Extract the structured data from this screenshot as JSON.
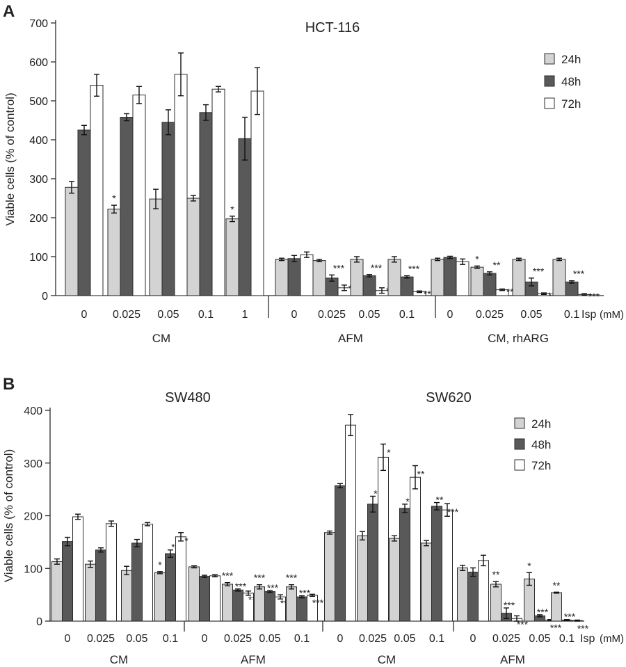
{
  "units": "(mM)",
  "isp_label": "Isp",
  "colors": {
    "24h": "#d3d3d3",
    "48h": "#595959",
    "72h": "#ffffff",
    "stroke": "#2b2b2b"
  },
  "chart_data": [
    {
      "panel": "A",
      "type": "bar",
      "title": "HCT-116",
      "ylabel": "Viable cells (% of control)",
      "ylim": [
        0,
        700
      ],
      "yticks": [
        0,
        100,
        200,
        300,
        400,
        500,
        600,
        700
      ],
      "legend": {
        "position": "top-right",
        "entries": [
          "24h",
          "48h",
          "72h"
        ]
      },
      "groups": [
        {
          "label": "CM",
          "categories": [
            {
              "label": "0",
              "values": [
                278,
                425,
                540
              ],
              "errors": [
                15,
                12,
                28
              ],
              "stars": [
                "",
                "",
                ""
              ]
            },
            {
              "label": "0.025",
              "values": [
                222,
                458,
                515
              ],
              "errors": [
                10,
                9,
                22
              ],
              "stars": [
                "*",
                "",
                ""
              ]
            },
            {
              "label": "0.05",
              "values": [
                248,
                445,
                568
              ],
              "errors": [
                25,
                32,
                55
              ],
              "stars": [
                "",
                "",
                ""
              ]
            },
            {
              "label": "0.1",
              "values": [
                250,
                470,
                530
              ],
              "errors": [
                7,
                20,
                7
              ],
              "stars": [
                "",
                "",
                ""
              ]
            },
            {
              "label": "1",
              "values": [
                197,
                403,
                525
              ],
              "errors": [
                7,
                55,
                60
              ],
              "stars": [
                "*",
                "",
                ""
              ]
            }
          ]
        },
        {
          "label": "AFM",
          "categories": [
            {
              "label": "0",
              "values": [
                93,
                95,
                105
              ],
              "errors": [
                3,
                8,
                7
              ],
              "stars": [
                "",
                "",
                ""
              ]
            },
            {
              "label": "0.025",
              "values": [
                90,
                45,
                20
              ],
              "errors": [
                3,
                8,
                7
              ],
              "stars": [
                "",
                "***",
                "***"
              ]
            },
            {
              "label": "0.05",
              "values": [
                93,
                51,
                13
              ],
              "errors": [
                7,
                3,
                7
              ],
              "stars": [
                "",
                "***",
                "***"
              ]
            },
            {
              "label": "0.1",
              "values": [
                93,
                48,
                10
              ],
              "errors": [
                7,
                3,
                2
              ],
              "stars": [
                "",
                "***",
                "***"
              ]
            }
          ]
        },
        {
          "label": "CM, rhARG",
          "categories": [
            {
              "label": "0",
              "values": [
                93,
                98,
                87
              ],
              "errors": [
                3,
                3,
                7
              ],
              "stars": [
                "",
                "",
                ""
              ]
            },
            {
              "label": "0.025",
              "values": [
                73,
                57,
                15
              ],
              "errors": [
                3,
                4,
                2
              ],
              "stars": [
                "*",
                "**",
                "***"
              ]
            },
            {
              "label": "0.05",
              "values": [
                93,
                35,
                5
              ],
              "errors": [
                3,
                10,
                2
              ],
              "stars": [
                "",
                "***",
                "***"
              ]
            },
            {
              "label": "0.1",
              "values": [
                93,
                35,
                3
              ],
              "errors": [
                3,
                3,
                2
              ],
              "stars": [
                "",
                "***",
                "***"
              ]
            }
          ]
        }
      ]
    },
    {
      "panel": "B",
      "type": "bar",
      "titles": [
        "SW480",
        "SW620"
      ],
      "ylabel": "Viable cells (% of control)",
      "ylim": [
        0,
        400
      ],
      "yticks": [
        0,
        100,
        200,
        300,
        400
      ],
      "legend": {
        "position": "top-right",
        "entries": [
          "24h",
          "48h",
          "72h"
        ]
      },
      "groups": [
        {
          "label": "CM",
          "categories": [
            {
              "label": "0",
              "values": [
                113,
                151,
                198
              ],
              "errors": [
                5,
                8,
                5
              ],
              "stars": [
                "",
                "",
                ""
              ]
            },
            {
              "label": "0.025",
              "values": [
                108,
                135,
                185
              ],
              "errors": [
                6,
                4,
                5
              ],
              "stars": [
                "",
                "",
                ""
              ]
            },
            {
              "label": "0.05",
              "values": [
                96,
                148,
                184
              ],
              "errors": [
                8,
                7,
                3
              ],
              "stars": [
                "",
                "",
                ""
              ]
            },
            {
              "label": "0.1",
              "values": [
                92,
                128,
                160
              ],
              "errors": [
                2,
                7,
                8
              ],
              "stars": [
                "*",
                "*",
                "*"
              ]
            }
          ]
        },
        {
          "label": "AFM",
          "categories": [
            {
              "label": "0",
              "values": [
                103,
                85,
                86
              ],
              "errors": [
                2,
                2,
                2
              ],
              "stars": [
                "",
                "",
                ""
              ]
            },
            {
              "label": "0.025",
              "values": [
                70,
                59,
                53
              ],
              "errors": [
                3,
                2,
                4
              ],
              "stars": [
                "***",
                "***",
                "***"
              ]
            },
            {
              "label": "0.05",
              "values": [
                65,
                56,
                46
              ],
              "errors": [
                4,
                2,
                4
              ],
              "stars": [
                "***",
                "***",
                "***"
              ]
            },
            {
              "label": "0.1",
              "values": [
                65,
                46,
                49
              ],
              "errors": [
                4,
                2,
                2
              ],
              "stars": [
                "***",
                "***",
                "***"
              ]
            }
          ]
        },
        {
          "label": "CM",
          "categories": [
            {
              "label": "0",
              "values": [
                168,
                257,
                372
              ],
              "errors": [
                3,
                4,
                20
              ],
              "stars": [
                "",
                "",
                ""
              ]
            },
            {
              "label": "0.025",
              "values": [
                162,
                222,
                311
              ],
              "errors": [
                8,
                15,
                25
              ],
              "stars": [
                "",
                "*",
                "*"
              ]
            },
            {
              "label": "0.05",
              "values": [
                157,
                214,
                273
              ],
              "errors": [
                5,
                8,
                22
              ],
              "stars": [
                "",
                "*",
                "**"
              ]
            },
            {
              "label": "0.1",
              "values": [
                148,
                218,
                211
              ],
              "errors": [
                5,
                7,
                12
              ],
              "stars": [
                "",
                "**",
                "***"
              ]
            }
          ]
        },
        {
          "label": "AFM",
          "categories": [
            {
              "label": "0",
              "values": [
                101,
                93,
                115
              ],
              "errors": [
                5,
                8,
                10
              ],
              "stars": [
                "",
                "",
                ""
              ]
            },
            {
              "label": "0.025",
              "values": [
                70,
                15,
                5
              ],
              "errors": [
                5,
                10,
                5
              ],
              "stars": [
                "**",
                "***",
                "***"
              ]
            },
            {
              "label": "0.05",
              "values": [
                80,
                10,
                2
              ],
              "errors": [
                12,
                2,
                1
              ],
              "stars": [
                "*",
                "***",
                "***"
              ]
            },
            {
              "label": "0.1",
              "values": [
                54,
                2,
                1
              ],
              "errors": [
                1,
                1,
                1
              ],
              "stars": [
                "**",
                "***",
                "***"
              ]
            }
          ]
        }
      ]
    }
  ]
}
